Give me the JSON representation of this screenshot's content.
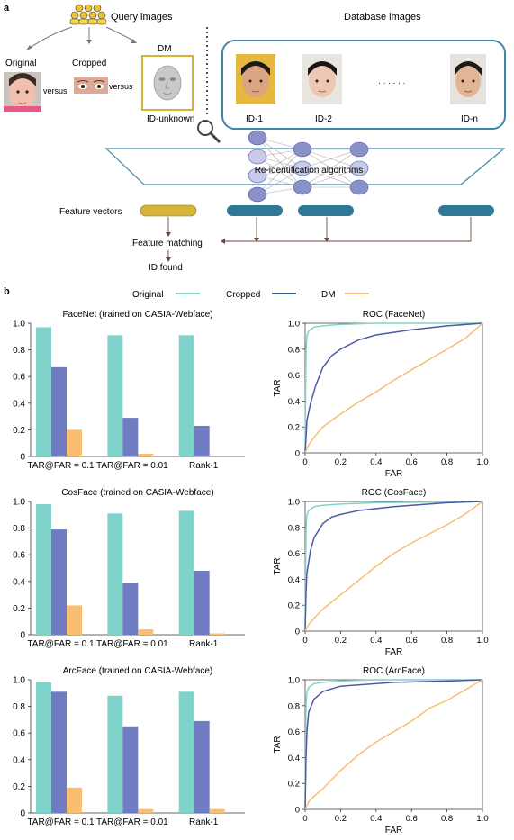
{
  "panel_labels": [
    "a",
    "b"
  ],
  "panel_a": {
    "query_title": "Query images",
    "database_title": "Database images",
    "original_label": "Original",
    "cropped_label": "Cropped",
    "versus_label": "versus",
    "dm_label": "DM",
    "id_unknown_label": "ID-unknown",
    "database_ids": [
      "ID-1",
      "ID-2",
      "ID-n"
    ],
    "ellipsis": "· · · · · ·",
    "algorithm_label": "Re-identification algorithms",
    "feature_vectors_label": "Feature vectors",
    "feature_matching_label": "Feature matching",
    "id_found_label": "ID found",
    "colors": {
      "db_border": "#3f86a6",
      "query_vector": "#d4b43a",
      "db_vector": "#2f7996",
      "dm_frame": "#d4b43a",
      "nodes": "#8a91c9"
    }
  },
  "legend": [
    {
      "name": "Original",
      "color": "#7fd3cb"
    },
    {
      "name": "Cropped",
      "color": "#2f5f9e"
    },
    {
      "name": "DM",
      "color": "#f7bf6f"
    }
  ],
  "chart_data": [
    {
      "type": "bar",
      "title": "FaceNet (trained on CASIA-Webface)",
      "categories": [
        "TAR@FAR = 0.1",
        "TAR@FAR = 0.01",
        "Rank-1"
      ],
      "series": [
        {
          "name": "Original",
          "values": [
            0.97,
            0.91,
            0.91
          ]
        },
        {
          "name": "Cropped",
          "values": [
            0.67,
            0.29,
            0.23
          ]
        },
        {
          "name": "DM",
          "values": [
            0.2,
            0.02,
            0.0
          ]
        }
      ],
      "ylim": [
        0,
        1.0
      ],
      "yticks": [
        "0",
        "0.2",
        "0.4",
        "0.6",
        "0.8",
        "1.0"
      ],
      "colors": [
        "#7fd3cb",
        "#6f7cc2",
        "#f7bf6f"
      ]
    },
    {
      "type": "line",
      "title": "ROC (FaceNet)",
      "xlabel": "FAR",
      "ylabel": "TAR",
      "xlim": [
        0,
        1.0
      ],
      "ylim": [
        0,
        1.0
      ],
      "xticks": [
        "0",
        "0.2",
        "0.4",
        "0.6",
        "0.8",
        "1.0"
      ],
      "yticks": [
        "0",
        "0.2",
        "0.4",
        "0.6",
        "0.8",
        "1.0"
      ],
      "series": [
        {
          "name": "Original",
          "x": [
            0,
            0.005,
            0.01,
            0.02,
            0.05,
            0.1,
            0.2,
            0.4,
            1.0
          ],
          "y": [
            0,
            0.8,
            0.9,
            0.94,
            0.97,
            0.98,
            0.99,
            1.0,
            1.0
          ]
        },
        {
          "name": "Cropped",
          "x": [
            0,
            0.01,
            0.03,
            0.06,
            0.1,
            0.15,
            0.2,
            0.3,
            0.4,
            0.6,
            0.8,
            1.0
          ],
          "y": [
            0,
            0.25,
            0.38,
            0.52,
            0.66,
            0.75,
            0.8,
            0.87,
            0.91,
            0.95,
            0.98,
            1.0
          ]
        },
        {
          "name": "DM",
          "x": [
            0,
            0.02,
            0.05,
            0.1,
            0.2,
            0.3,
            0.4,
            0.5,
            0.6,
            0.7,
            0.8,
            0.9,
            1.0
          ],
          "y": [
            0,
            0.06,
            0.12,
            0.2,
            0.3,
            0.39,
            0.47,
            0.56,
            0.64,
            0.72,
            0.8,
            0.88,
            1.0
          ]
        }
      ],
      "colors": [
        "#7fd3cb",
        "#4e58a8",
        "#f7bf6f"
      ]
    },
    {
      "type": "bar",
      "title": "CosFace (trained on CASIA-Webface)",
      "categories": [
        "TAR@FAR = 0.1",
        "TAR@FAR = 0.01",
        "Rank-1"
      ],
      "series": [
        {
          "name": "Original",
          "values": [
            0.98,
            0.91,
            0.93
          ]
        },
        {
          "name": "Cropped",
          "values": [
            0.79,
            0.39,
            0.48
          ]
        },
        {
          "name": "DM",
          "values": [
            0.22,
            0.04,
            0.01
          ]
        }
      ],
      "ylim": [
        0,
        1.0
      ],
      "yticks": [
        "0",
        "0.2",
        "0.4",
        "0.6",
        "0.8",
        "1.0"
      ],
      "colors": [
        "#7fd3cb",
        "#6f7cc2",
        "#f7bf6f"
      ]
    },
    {
      "type": "line",
      "title": "ROC (CosFace)",
      "xlabel": "FAR",
      "ylabel": "TAR",
      "xlim": [
        0,
        1.0
      ],
      "ylim": [
        0,
        1.0
      ],
      "xticks": [
        "0",
        "0.2",
        "0.4",
        "0.6",
        "0.8",
        "1.0"
      ],
      "yticks": [
        "0",
        "0.2",
        "0.4",
        "0.6",
        "0.8",
        "1.0"
      ],
      "series": [
        {
          "name": "Original",
          "x": [
            0,
            0.005,
            0.01,
            0.02,
            0.05,
            0.1,
            0.2,
            0.4,
            1.0
          ],
          "y": [
            0,
            0.8,
            0.9,
            0.93,
            0.96,
            0.97,
            0.98,
            0.99,
            1.0
          ]
        },
        {
          "name": "Cropped",
          "x": [
            0,
            0.005,
            0.01,
            0.03,
            0.05,
            0.1,
            0.15,
            0.2,
            0.3,
            0.5,
            0.8,
            1.0
          ],
          "y": [
            0,
            0.3,
            0.45,
            0.62,
            0.72,
            0.83,
            0.88,
            0.9,
            0.93,
            0.96,
            0.99,
            1.0
          ]
        },
        {
          "name": "DM",
          "x": [
            0,
            0.02,
            0.05,
            0.1,
            0.2,
            0.3,
            0.4,
            0.5,
            0.6,
            0.7,
            0.8,
            0.9,
            1.0
          ],
          "y": [
            0,
            0.05,
            0.1,
            0.17,
            0.28,
            0.39,
            0.5,
            0.6,
            0.68,
            0.75,
            0.82,
            0.9,
            1.0
          ]
        }
      ],
      "colors": [
        "#7fd3cb",
        "#4e58a8",
        "#f7bf6f"
      ]
    },
    {
      "type": "bar",
      "title": "ArcFace (trained on CASIA-Webface)",
      "categories": [
        "TAR@FAR = 0.1",
        "TAR@FAR = 0.01",
        "Rank-1"
      ],
      "series": [
        {
          "name": "Original",
          "values": [
            0.98,
            0.88,
            0.91
          ]
        },
        {
          "name": "Cropped",
          "values": [
            0.91,
            0.65,
            0.69
          ]
        },
        {
          "name": "DM",
          "values": [
            0.19,
            0.03,
            0.03
          ]
        }
      ],
      "ylim": [
        0,
        1.0
      ],
      "yticks": [
        "0",
        "0.2",
        "0.4",
        "0.6",
        "0.8",
        "1.0"
      ],
      "colors": [
        "#7fd3cb",
        "#6f7cc2",
        "#f7bf6f"
      ]
    },
    {
      "type": "line",
      "title": "ROC (ArcFace)",
      "xlabel": "FAR",
      "ylabel": "TAR",
      "xlim": [
        0,
        1.0
      ],
      "ylim": [
        0,
        1.0
      ],
      "xticks": [
        "0",
        "0.2",
        "0.4",
        "0.6",
        "0.8",
        "1.0"
      ],
      "yticks": [
        "0",
        "0.2",
        "0.4",
        "0.6",
        "0.8",
        "1.0"
      ],
      "series": [
        {
          "name": "Original",
          "x": [
            0,
            0.005,
            0.01,
            0.02,
            0.05,
            0.1,
            0.2,
            0.4,
            1.0
          ],
          "y": [
            0,
            0.82,
            0.9,
            0.94,
            0.97,
            0.98,
            0.99,
            1.0,
            1.0
          ]
        },
        {
          "name": "Cropped",
          "x": [
            0,
            0.005,
            0.01,
            0.02,
            0.05,
            0.1,
            0.2,
            0.3,
            0.5,
            0.8,
            1.0
          ],
          "y": [
            0,
            0.4,
            0.6,
            0.75,
            0.85,
            0.91,
            0.95,
            0.96,
            0.98,
            0.99,
            1.0
          ]
        },
        {
          "name": "DM",
          "x": [
            0,
            0.02,
            0.05,
            0.1,
            0.2,
            0.3,
            0.4,
            0.5,
            0.6,
            0.7,
            0.8,
            0.9,
            1.0
          ],
          "y": [
            0,
            0.06,
            0.1,
            0.16,
            0.3,
            0.42,
            0.52,
            0.6,
            0.68,
            0.78,
            0.84,
            0.92,
            1.0
          ]
        }
      ],
      "colors": [
        "#7fd3cb",
        "#4e58a8",
        "#f7bf6f"
      ]
    }
  ]
}
